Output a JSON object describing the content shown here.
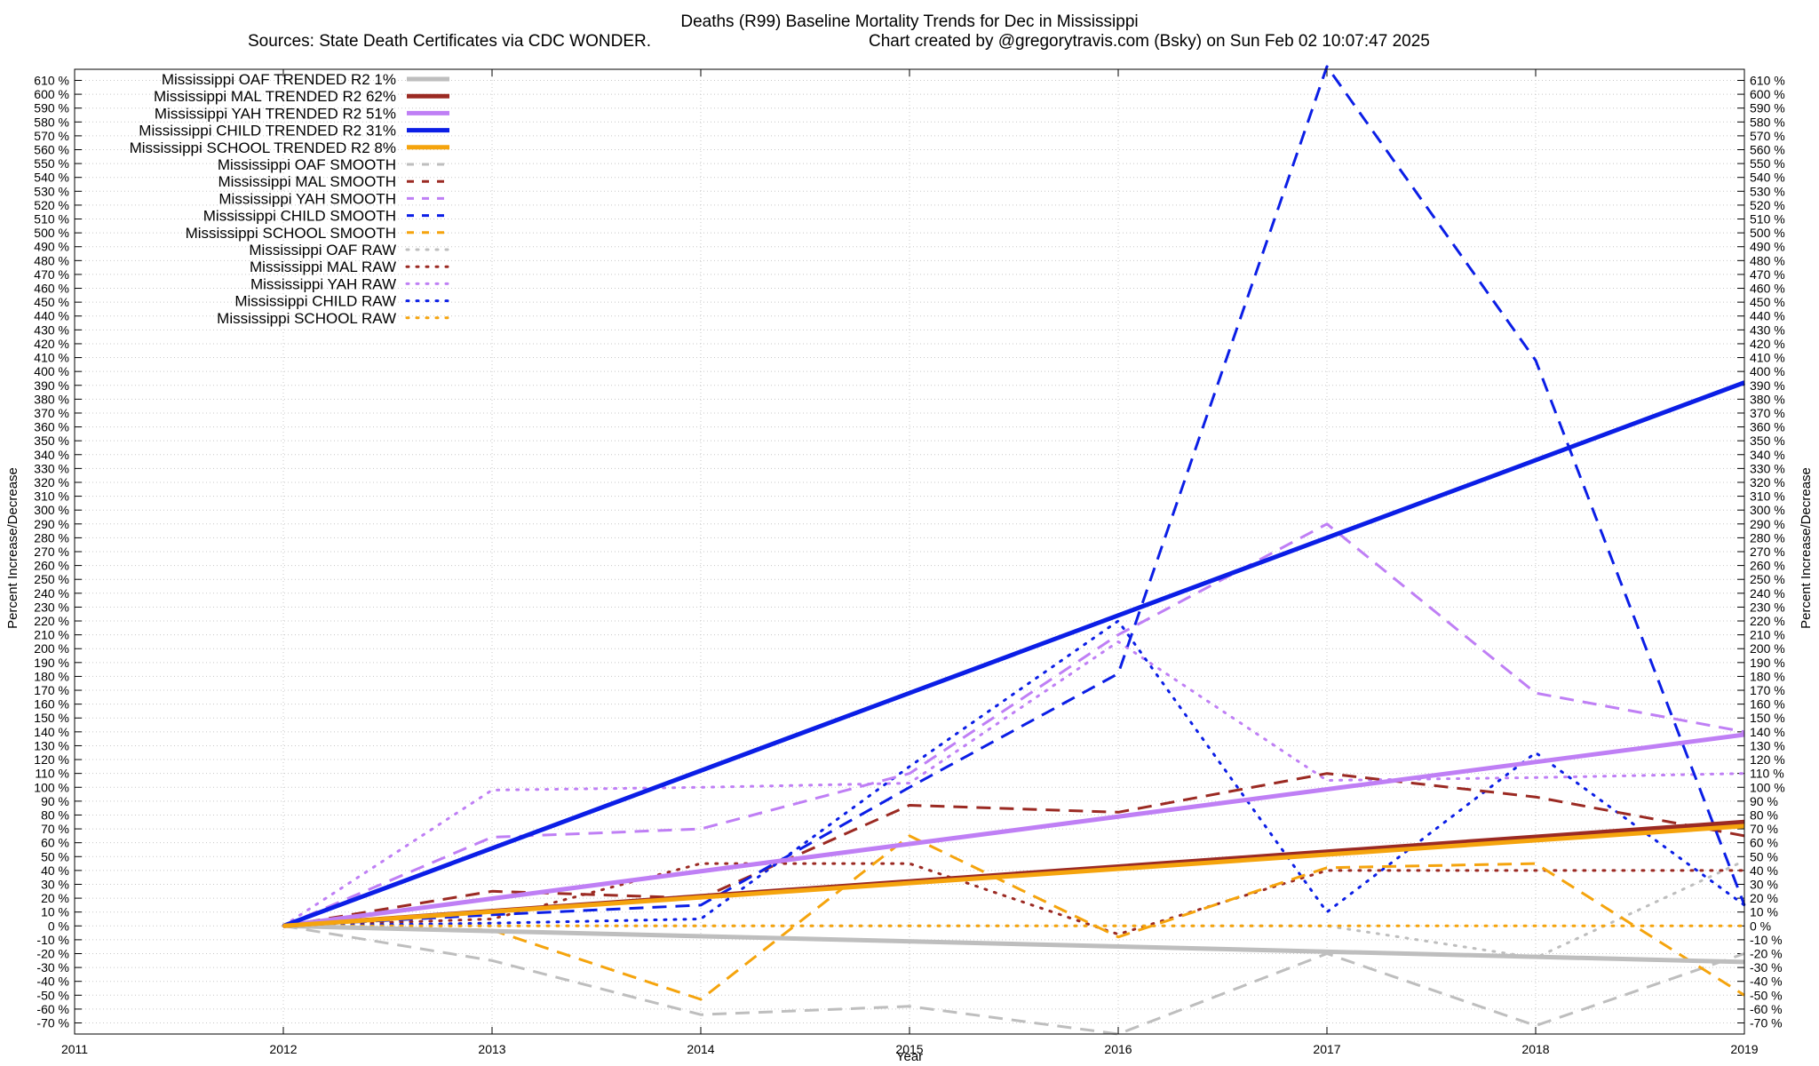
{
  "chart_data": {
    "type": "line",
    "title": "Deaths (R99)  Baseline Mortality Trends for Dec in Mississippi",
    "subtitle_left": "Sources: State Death Certificates via CDC WONDER.",
    "subtitle_right": "Chart created by @gregorytravis.com (Bsky) on Sun Feb 02 10:07:47 2025",
    "xlabel": "Year",
    "ylabel": "Percent Increase/Decrease",
    "ylabel_right": "Percent Increase/Decrease",
    "xlim": [
      2011,
      2019
    ],
    "ylim": [
      -78,
      618
    ],
    "x_ticks": [
      2011,
      2012,
      2013,
      2014,
      2015,
      2016,
      2017,
      2018,
      2019
    ],
    "y_ticks_start": -70,
    "y_ticks_end": 610,
    "y_ticks_step": 10,
    "y_tick_suffix": " %",
    "grid": true,
    "legend_position": "top-left",
    "series": [
      {
        "name": "Mississippi OAF TRENDED R2   1%",
        "style": "trend",
        "color": "#bebebe",
        "x": [
          2012,
          2019
        ],
        "values": [
          0,
          -26
        ]
      },
      {
        "name": "Mississippi MAL TRENDED R2  62%",
        "style": "trend",
        "color": "#9b2a23",
        "x": [
          2012,
          2019
        ],
        "values": [
          0,
          75
        ]
      },
      {
        "name": "Mississippi YAH TRENDED R2  51%",
        "style": "trend",
        "color": "#bf7ff5",
        "x": [
          2012,
          2019
        ],
        "values": [
          0,
          138
        ]
      },
      {
        "name": "Mississippi CHILD TRENDED R2  31%",
        "style": "trend",
        "color": "#0b1ee6",
        "x": [
          2012,
          2019
        ],
        "values": [
          0,
          392
        ]
      },
      {
        "name": "Mississippi SCHOOL TRENDED R2   8%",
        "style": "trend",
        "color": "#f5a40d",
        "x": [
          2012,
          2019
        ],
        "values": [
          0,
          72
        ]
      },
      {
        "name": "Mississippi OAF SMOOTH",
        "style": "smooth",
        "color": "#bebebe",
        "x": [
          2012,
          2013,
          2014,
          2015,
          2016,
          2017,
          2018,
          2019
        ],
        "values": [
          0,
          -25,
          -64,
          -58,
          -78,
          -20,
          -72,
          -20
        ]
      },
      {
        "name": "Mississippi MAL SMOOTH",
        "style": "smooth",
        "color": "#9b2a23",
        "x": [
          2012,
          2013,
          2014,
          2015,
          2016,
          2017,
          2018,
          2019
        ],
        "values": [
          0,
          25,
          20,
          87,
          82,
          110,
          93,
          65
        ]
      },
      {
        "name": "Mississippi YAH SMOOTH",
        "style": "smooth",
        "color": "#bf7ff5",
        "x": [
          2012,
          2013,
          2014,
          2015,
          2016,
          2017,
          2018,
          2019
        ],
        "values": [
          0,
          64,
          70,
          110,
          210,
          290,
          168,
          140
        ]
      },
      {
        "name": "Mississippi CHILD SMOOTH",
        "style": "smooth",
        "color": "#0b1ee6",
        "x": [
          2012,
          2013,
          2014,
          2015,
          2016,
          2017,
          2018,
          2019
        ],
        "values": [
          0,
          8,
          15,
          100,
          182,
          620,
          408,
          15
        ]
      },
      {
        "name": "Mississippi SCHOOL SMOOTH",
        "style": "smooth",
        "color": "#f5a40d",
        "x": [
          2012,
          2013,
          2014,
          2015,
          2016,
          2017,
          2018,
          2019
        ],
        "values": [
          0,
          -3,
          -53,
          65,
          -8,
          42,
          45,
          -50
        ]
      },
      {
        "name": "Mississippi OAF RAW",
        "style": "raw",
        "color": "#bebebe",
        "x": [
          2012,
          2013,
          2014,
          2015,
          2016,
          2017,
          2018,
          2019
        ],
        "values": [
          0,
          0,
          0,
          0,
          0,
          0,
          -23,
          47
        ]
      },
      {
        "name": "Mississippi MAL RAW",
        "style": "raw",
        "color": "#9b2a23",
        "x": [
          2012,
          2013,
          2014,
          2015,
          2016,
          2017,
          2018,
          2019
        ],
        "values": [
          0,
          5,
          45,
          45,
          -6,
          40,
          40,
          40
        ]
      },
      {
        "name": "Mississippi YAH RAW",
        "style": "raw",
        "color": "#bf7ff5",
        "x": [
          2012,
          2013,
          2014,
          2015,
          2016,
          2017,
          2018,
          2019
        ],
        "values": [
          0,
          98,
          100,
          103,
          205,
          105,
          107,
          110
        ]
      },
      {
        "name": "Mississippi CHILD RAW",
        "style": "raw",
        "color": "#0b1ee6",
        "x": [
          2012,
          2013,
          2014,
          2015,
          2016,
          2017,
          2018,
          2019
        ],
        "values": [
          0,
          2,
          5,
          115,
          220,
          10,
          125,
          15
        ]
      },
      {
        "name": "Mississippi SCHOOL RAW",
        "style": "raw",
        "color": "#f5a40d",
        "x": [
          2012,
          2013,
          2014,
          2015,
          2016,
          2017,
          2018,
          2019
        ],
        "values": [
          0,
          0,
          0,
          0,
          0,
          0,
          0,
          0
        ]
      }
    ]
  }
}
